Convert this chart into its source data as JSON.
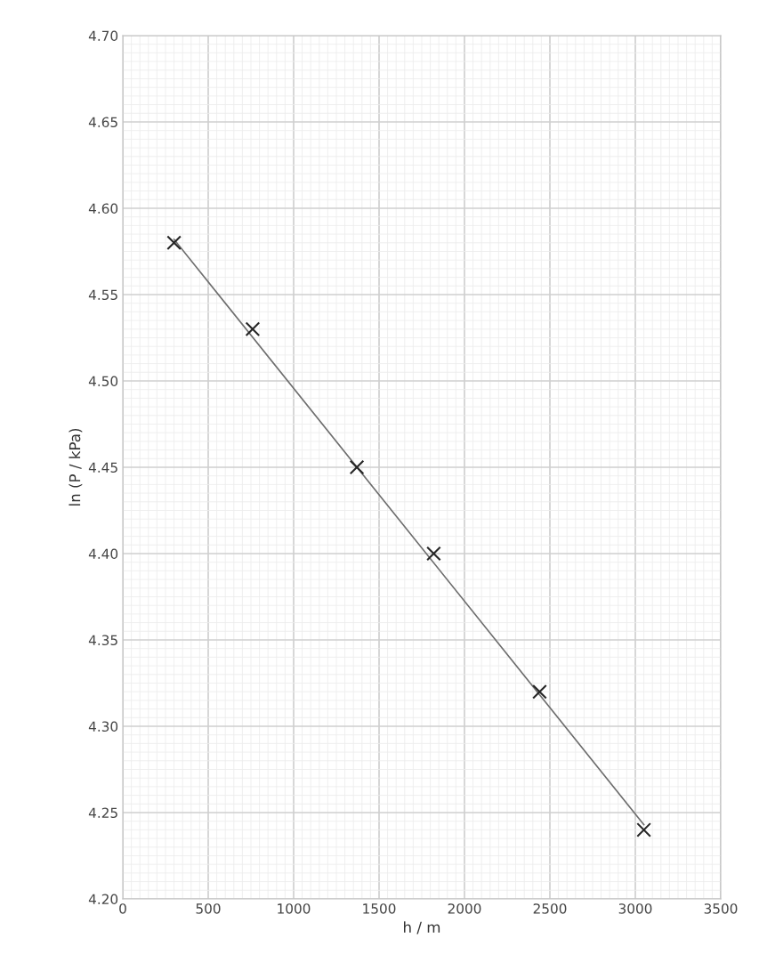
{
  "chart_data": {
    "type": "scatter",
    "xlabel": "h / m",
    "ylabel": "ln (P / kPa)",
    "x": [
      300,
      760,
      1370,
      1820,
      2440,
      3050
    ],
    "series": [
      {
        "color": "#262626",
        "marker": "cross",
        "values": [
          4.58,
          4.53,
          4.45,
          4.4,
          4.32,
          4.24
        ]
      },
      {
        "type": "line",
        "color": "#6e6e6e",
        "marker": "none",
        "line_style": "solid",
        "x": [
          300,
          3050
        ],
        "values": [
          4.582,
          4.243
        ]
      }
    ],
    "xlim": [
      0,
      3500
    ],
    "xticks": [
      0,
      500,
      1000,
      1500,
      2000,
      2500,
      3000,
      3500
    ],
    "ylim": [
      4.2,
      4.7
    ],
    "yticks": [
      {
        "value": 4.2,
        "label": "4.20"
      },
      {
        "value": 4.25,
        "label": "4.25"
      },
      {
        "value": 4.3,
        "label": "4.30"
      },
      {
        "value": 4.35,
        "label": "4.35"
      },
      {
        "value": 4.4,
        "label": "4.40"
      },
      {
        "value": 4.45,
        "label": "4.45"
      },
      {
        "value": 4.5,
        "label": "4.50"
      },
      {
        "value": 4.55,
        "label": "4.55"
      },
      {
        "value": 4.6,
        "label": "4.60"
      },
      {
        "value": 4.65,
        "label": "4.65"
      },
      {
        "value": 4.7,
        "label": "4.70"
      }
    ],
    "grid": true,
    "legend": false
  }
}
